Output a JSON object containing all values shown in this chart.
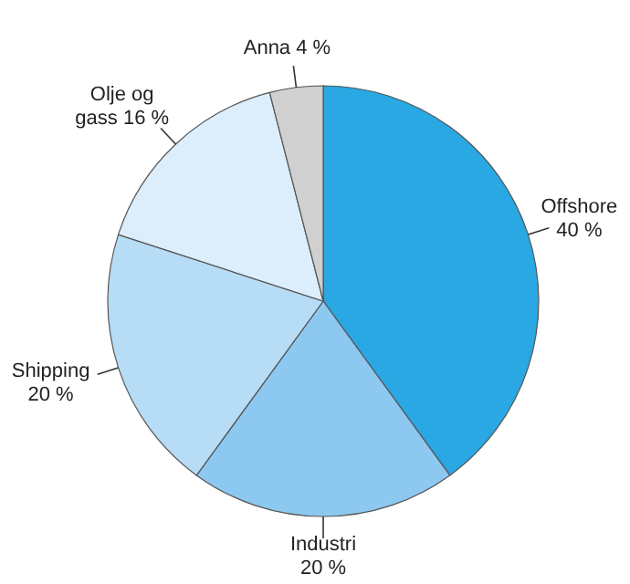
{
  "chart_data": {
    "type": "pie",
    "categories": [
      "Offshore",
      "Industri",
      "Shipping",
      "Olje og gass",
      "Anna"
    ],
    "values": [
      40,
      20,
      20,
      16,
      4
    ],
    "value_labels": [
      "40 %",
      "20 %",
      "20 %",
      "16 %",
      "4 %"
    ],
    "colors": [
      "#29a8e3",
      "#8dc8f0",
      "#b6dcf6",
      "#dceefb",
      "#d0d0d0"
    ]
  }
}
